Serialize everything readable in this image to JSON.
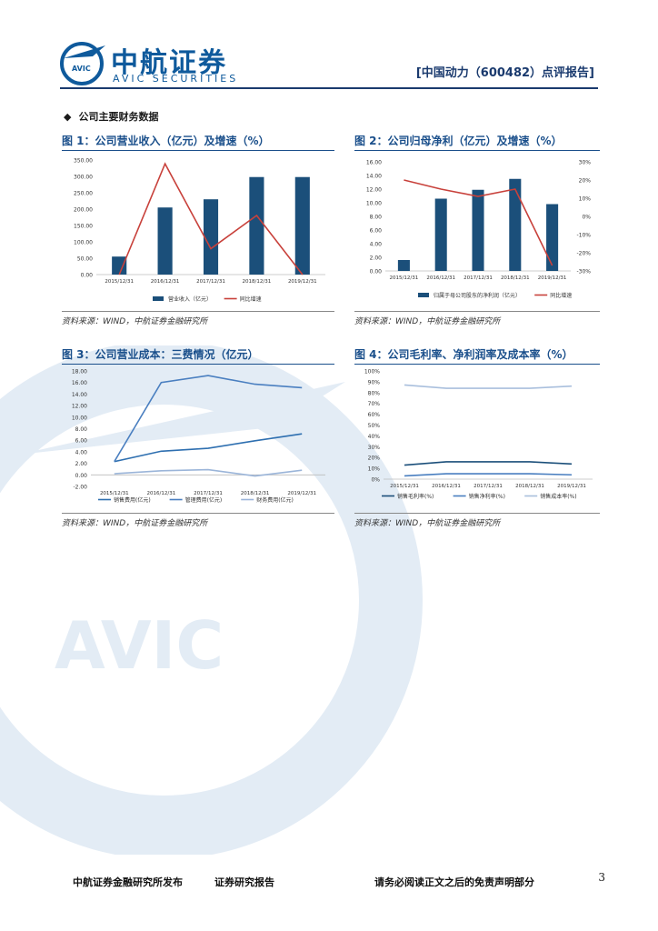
{
  "brand": {
    "name": "中航证券",
    "name_en": "AVIC SECURITIES",
    "logo_mark_text": "AVIC",
    "watermark_text": "AVIC",
    "color": "#0f5a9c"
  },
  "header": {
    "report_tag": "[中国动力（600482）点评报告]"
  },
  "section": {
    "bullet": "◆",
    "title": "公司主要财务数据"
  },
  "figures": [
    {
      "title": "图 1：公司营业收入（亿元）及增速（%）",
      "source": "资料来源：WIND，中航证券金融研究所"
    },
    {
      "title": "图 2：公司归母净利（亿元）及增速（%）",
      "source": "资料来源：WIND，中航证券金融研究所"
    },
    {
      "title": "图 3：公司营业成本：三费情况（亿元）",
      "source": "资料来源：WIND，中航证券金融研究所"
    },
    {
      "title": "图 4：公司毛利率、净利润率及成本率（%）",
      "source": "资料来源：WIND，中航证券金融研究所"
    }
  ],
  "footer": {
    "publisher": "中航证券金融研究所发布",
    "report_type": "证券研究报告",
    "disclaimer": "请务必阅读正文之后的免责声明部分",
    "page": "3"
  },
  "chart_data": [
    {
      "type": "bar",
      "categories": [
        "2015/12/31",
        "2016/12/31",
        "2017/12/31",
        "2018/12/31",
        "2019/12/31"
      ],
      "y_ticks": [
        "0.00",
        "50.00",
        "100.00",
        "150.00",
        "200.00",
        "250.00",
        "300.00",
        "350.00"
      ],
      "ylim": [
        0,
        350
      ],
      "y2lim": [
        -100,
        3000
      ],
      "series": [
        {
          "name": "营业收入（亿元）",
          "kind": "bar",
          "axis": "left",
          "color": "#1b4f7a",
          "values": [
            55,
            205,
            230,
            298,
            298
          ]
        },
        {
          "name": "同比增速",
          "kind": "line",
          "axis": "right",
          "color": "#c8413b",
          "values": [
            -100,
            2900,
            600,
            1500,
            -100
          ]
        }
      ]
    },
    {
      "type": "bar",
      "categories": [
        "2015/12/31",
        "2016/12/31",
        "2017/12/31",
        "2018/12/31",
        "2019/12/31"
      ],
      "y_ticks": [
        "0.00",
        "2.00",
        "4.00",
        "6.00",
        "8.00",
        "10.00",
        "12.00",
        "14.00",
        "16.00"
      ],
      "y2_ticks": [
        "30%",
        "20%",
        "10%",
        "0%",
        "-10%",
        "-20%",
        "-30%"
      ],
      "ylim": [
        0,
        16
      ],
      "y2lim": [
        -30,
        30
      ],
      "series": [
        {
          "name": "归属于母公司股东的净利润（亿元）",
          "kind": "bar",
          "axis": "left",
          "color": "#1b4f7a",
          "values": [
            1.6,
            10.6,
            11.9,
            13.5,
            9.8
          ]
        },
        {
          "name": "同比增速",
          "kind": "line",
          "axis": "right",
          "color": "#c8413b",
          "values": [
            20,
            15,
            11,
            15,
            -27
          ]
        }
      ]
    },
    {
      "type": "line",
      "categories": [
        "2015/12/31",
        "2016/12/31",
        "2017/12/31",
        "2018/12/31",
        "2019/12/31"
      ],
      "y_ticks": [
        "-2.00",
        "0.00",
        "2.00",
        "4.00",
        "6.00",
        "8.00",
        "10.00",
        "12.00",
        "14.00",
        "16.00",
        "18.00"
      ],
      "ylim": [
        -2,
        18
      ],
      "series": [
        {
          "name": "销售费用(亿元)",
          "color": "#2e6fb0",
          "values": [
            2.3,
            4.1,
            4.6,
            5.9,
            7.1
          ]
        },
        {
          "name": "管理费用(亿元)",
          "color": "#4a7fc0",
          "values": [
            2.3,
            16.0,
            17.2,
            15.7,
            15.1
          ]
        },
        {
          "name": "财务费用(亿元)",
          "color": "#9bb5d9",
          "values": [
            0.2,
            0.7,
            0.9,
            -0.2,
            0.8
          ]
        }
      ]
    },
    {
      "type": "line",
      "categories": [
        "2015/12/31",
        "2016/12/31",
        "2017/12/31",
        "2018/12/31",
        "2019/12/31"
      ],
      "y_ticks": [
        "0%",
        "10%",
        "20%",
        "30%",
        "40%",
        "50%",
        "60%",
        "70%",
        "80%",
        "90%",
        "100%"
      ],
      "ylim": [
        0,
        100
      ],
      "series": [
        {
          "name": "销售毛利率(%)",
          "color": "#1b4f7a",
          "values": [
            13,
            16,
            16,
            16,
            14
          ]
        },
        {
          "name": "销售净利率(%)",
          "color": "#4a7fc0",
          "values": [
            3,
            5,
            5,
            5,
            4
          ]
        },
        {
          "name": "销售成本率(%)",
          "color": "#a9bfdd",
          "values": [
            87,
            84,
            84,
            84,
            86
          ]
        }
      ]
    }
  ]
}
